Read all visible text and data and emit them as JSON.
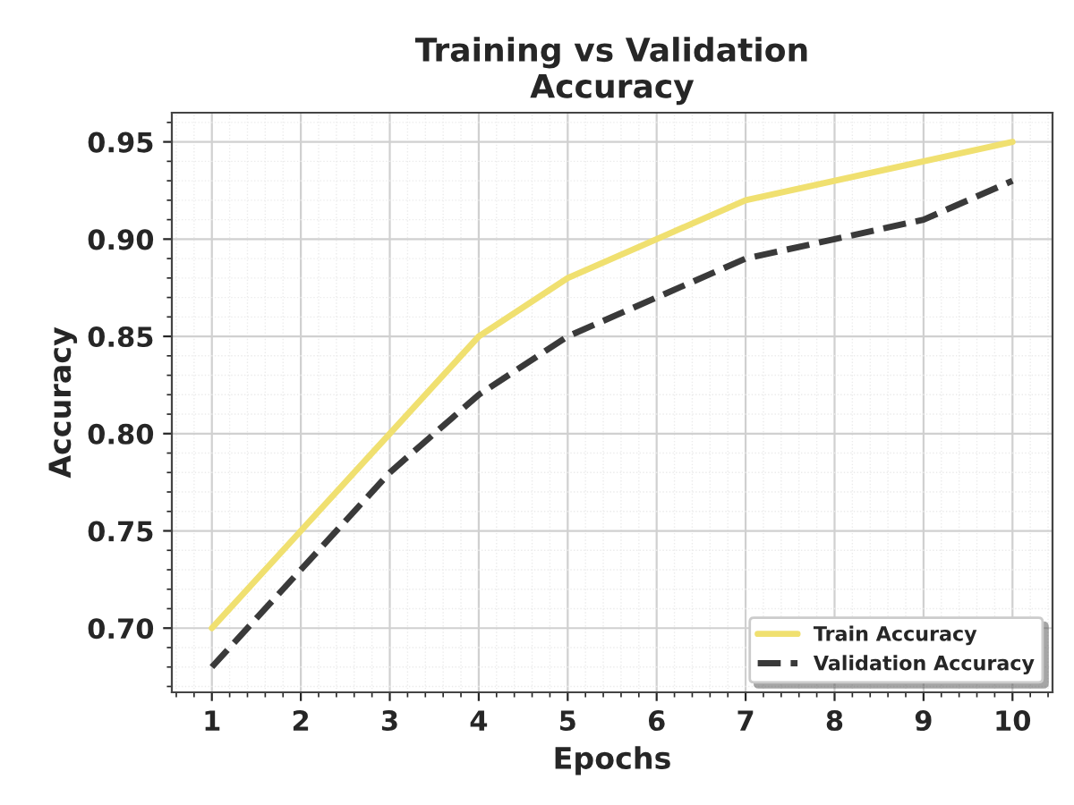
{
  "chart_data": {
    "type": "line",
    "title": "Training vs Validation\nAccuracy",
    "xlabel": "Epochs",
    "ylabel": "Accuracy",
    "x": [
      1,
      2,
      3,
      4,
      5,
      6,
      7,
      8,
      9,
      10
    ],
    "series": [
      {
        "name": "Train Accuracy",
        "color": "#f0e070",
        "line_style": "solid",
        "values": [
          0.7,
          0.75,
          0.8,
          0.85,
          0.88,
          0.9,
          0.92,
          0.93,
          0.94,
          0.95
        ]
      },
      {
        "name": "Validation Accuracy",
        "color": "#3a3a3a",
        "line_style": "dashed",
        "values": [
          0.68,
          0.73,
          0.78,
          0.82,
          0.85,
          0.87,
          0.89,
          0.9,
          0.91,
          0.93
        ]
      }
    ],
    "xlim": [
      0.55,
      10.45
    ],
    "ylim": [
      0.667,
      0.965
    ],
    "xticks": [
      1,
      2,
      3,
      4,
      5,
      6,
      7,
      8,
      9,
      10
    ],
    "yticks": [
      {
        "value": 0.7,
        "label": "0.70"
      },
      {
        "value": 0.75,
        "label": "0.75"
      },
      {
        "value": 0.8,
        "label": "0.80"
      },
      {
        "value": 0.85,
        "label": "0.85"
      },
      {
        "value": 0.9,
        "label": "0.90"
      },
      {
        "value": 0.95,
        "label": "0.95"
      }
    ],
    "grid": true,
    "legend": "bottom right",
    "marker": "none"
  }
}
